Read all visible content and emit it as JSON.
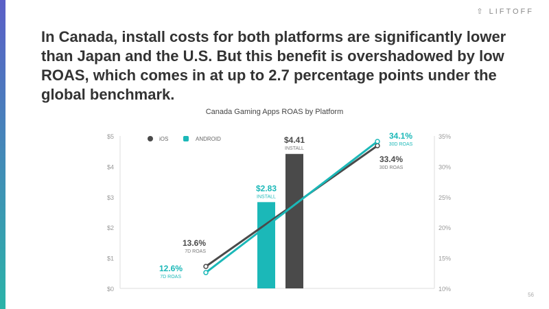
{
  "logo": "LIFTOFF",
  "headline": "In Canada, install costs for both platforms are significantly lower than Japan and the U.S. But this benefit is overshadowed by low ROAS, which comes in at up to 2.7 percentage points under the global benchmark.",
  "page_number": "56",
  "colors": {
    "ios": "#4a4a4a",
    "android": "#1bb8b8"
  },
  "chart_data": {
    "type": "bar+line",
    "title": "Canada Gaming Apps ROAS by Platform",
    "left_axis": {
      "ticks": [
        "$0",
        "$1",
        "$2",
        "$3",
        "$4",
        "$5"
      ],
      "range": [
        0,
        5
      ]
    },
    "right_axis": {
      "ticks": [
        "10%",
        "15%",
        "20%",
        "25%",
        "30%",
        "35%"
      ],
      "range": [
        10,
        35
      ]
    },
    "legend": [
      "iOS",
      "ANDROID"
    ],
    "bars": [
      {
        "series": "ANDROID",
        "value": 2.83,
        "label": "$2.83",
        "sub": "INSTALL"
      },
      {
        "series": "iOS",
        "value": 4.41,
        "label": "$4.41",
        "sub": "INSTALL"
      }
    ],
    "lines": [
      {
        "series": "iOS",
        "x": [
          "7D ROAS",
          "30D ROAS"
        ],
        "values": [
          13.6,
          33.4
        ],
        "labels": [
          "13.6%",
          "33.4%"
        ]
      },
      {
        "series": "ANDROID",
        "x": [
          "7D ROAS",
          "30D ROAS"
        ],
        "values": [
          12.6,
          34.1
        ],
        "labels": [
          "12.6%",
          "34.1%"
        ]
      }
    ],
    "point_sublabels": [
      "7D ROAS",
      "30D ROAS"
    ]
  }
}
